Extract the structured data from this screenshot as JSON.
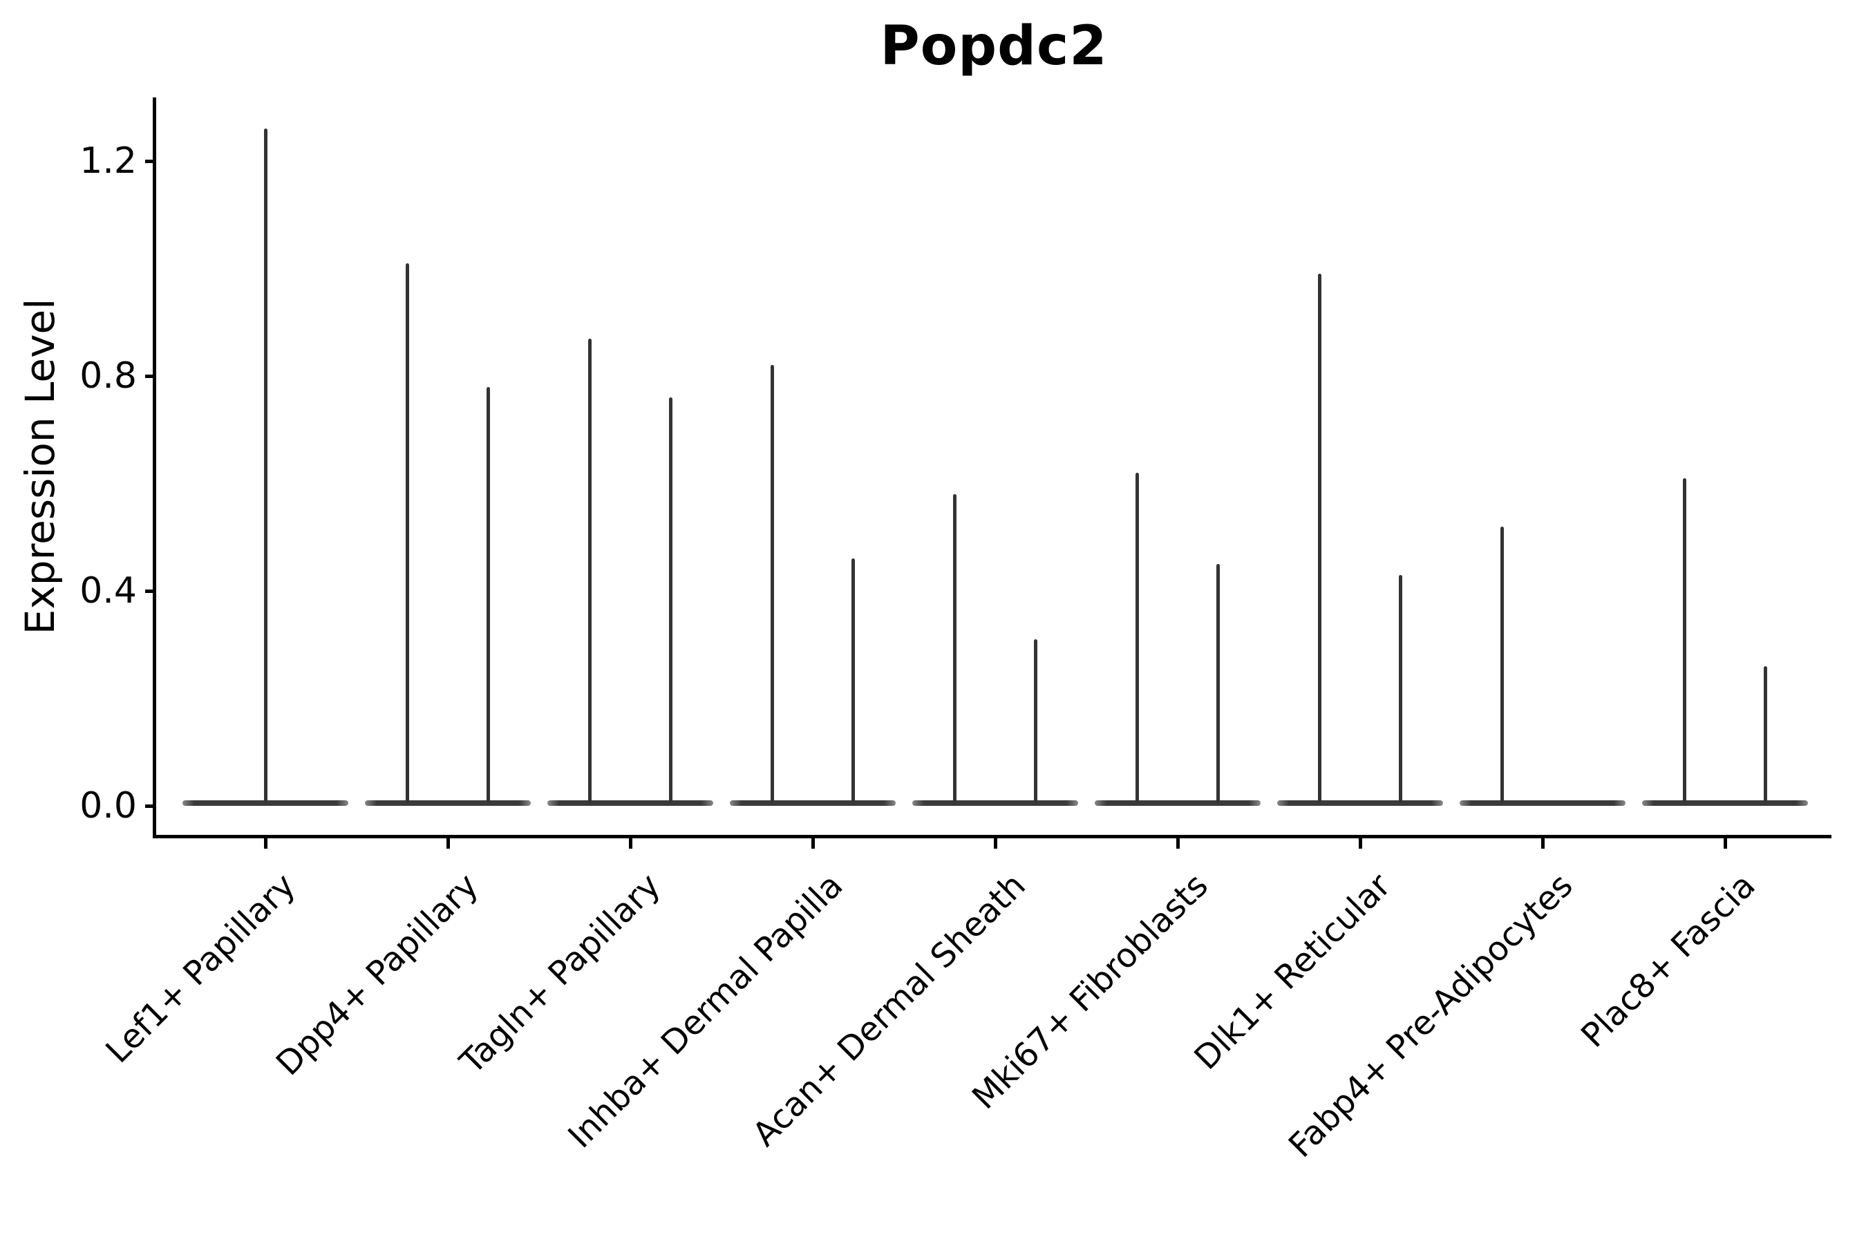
{
  "title": "Popdc2",
  "chart_data": {
    "type": "violin",
    "title": "Popdc2",
    "xlabel": "",
    "ylabel": "Expression Level",
    "ylim": [
      -0.06,
      1.32
    ],
    "yticks": [
      0.0,
      0.4,
      0.8,
      1.2
    ],
    "ytick_labels": [
      "0.0",
      "0.4",
      "0.8",
      "1.2"
    ],
    "grid": false,
    "legend": "none",
    "categories": [
      "Lef1+ Papillary",
      "Dpp4+ Papillary",
      "Tagln+ Papillary",
      "Inhba+ Dermal Papilla",
      "Acan+ Dermal Sheath",
      "Mki67+ Fibroblasts",
      "Dlk1+ Reticular",
      "Fabp4+ Pre-Adipocytes",
      "Plac8+ Fascia"
    ],
    "baseline_value": 0.0,
    "description": "Violin plot of Popdc2 expression; each cell population shows a flat density body at 0 with thin spikes reaching the maximum expression values.",
    "violins": [
      {
        "category": "Lef1+ Papillary",
        "spikes": [
          {
            "offset": 0.0,
            "max": 1.26
          }
        ]
      },
      {
        "category": "Dpp4+ Papillary",
        "spikes": [
          {
            "offset": -0.22,
            "max": 1.01
          },
          {
            "offset": 0.22,
            "max": 0.78
          }
        ]
      },
      {
        "category": "Tagln+ Papillary",
        "spikes": [
          {
            "offset": -0.22,
            "max": 0.87
          },
          {
            "offset": 0.22,
            "max": 0.76
          }
        ]
      },
      {
        "category": "Inhba+ Dermal Papilla",
        "spikes": [
          {
            "offset": -0.22,
            "max": 0.82
          },
          {
            "offset": 0.22,
            "max": 0.46
          }
        ]
      },
      {
        "category": "Acan+ Dermal Sheath",
        "spikes": [
          {
            "offset": -0.22,
            "max": 0.58
          },
          {
            "offset": 0.22,
            "max": 0.31
          }
        ]
      },
      {
        "category": "Mki67+ Fibroblasts",
        "spikes": [
          {
            "offset": -0.22,
            "max": 0.62
          },
          {
            "offset": 0.22,
            "max": 0.45
          }
        ]
      },
      {
        "category": "Dlk1+ Reticular",
        "spikes": [
          {
            "offset": -0.22,
            "max": 0.99
          },
          {
            "offset": 0.22,
            "max": 0.43
          }
        ]
      },
      {
        "category": "Fabp4+ Pre-Adipocytes",
        "spikes": [
          {
            "offset": -0.22,
            "max": 0.52
          }
        ]
      },
      {
        "category": "Plac8+ Fascia",
        "spikes": [
          {
            "offset": -0.22,
            "max": 0.61
          },
          {
            "offset": 0.22,
            "max": 0.26
          }
        ]
      }
    ],
    "colors": {
      "violin_line": "#333333",
      "violin_body": "#3a3a3a",
      "axis": "#000000",
      "text": "#000000",
      "background": "#ffffff"
    }
  }
}
